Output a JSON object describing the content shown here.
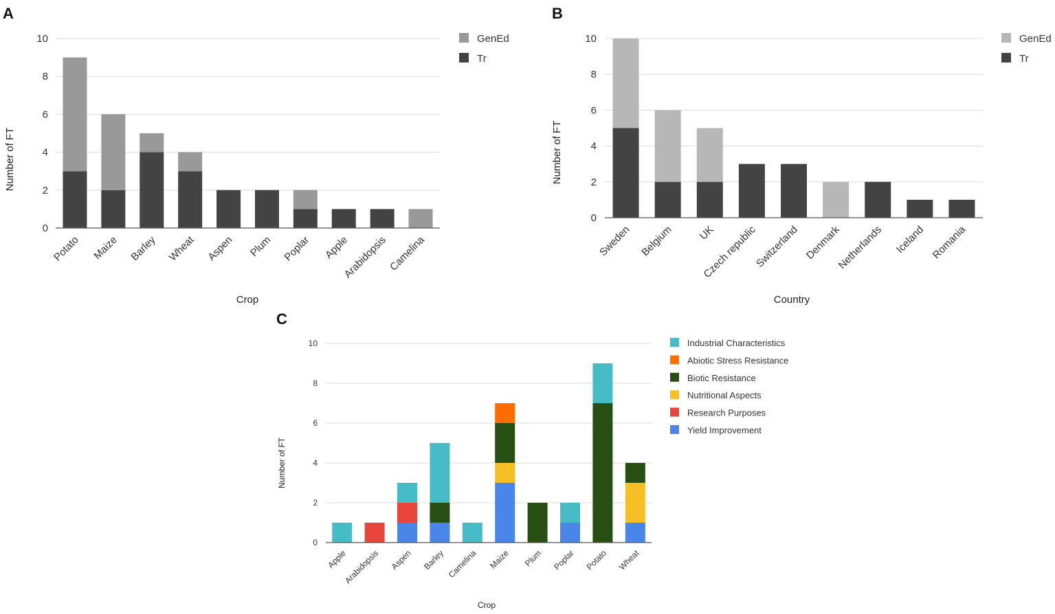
{
  "panels": [
    {
      "letter": "A",
      "chart_data": {
        "type": "bar",
        "stacked": true,
        "categories": [
          "Potato",
          "Maize",
          "Barley",
          "Wheat",
          "Aspen",
          "Plum",
          "Poplar",
          "Apple",
          "Arabidopsis",
          "Camelina"
        ],
        "series": [
          {
            "name": "Tr",
            "color": "#434343",
            "values": [
              3,
              2,
              4,
              3,
              2,
              2,
              1,
              1,
              1,
              0
            ]
          },
          {
            "name": "GenEd",
            "color": "#999999",
            "values": [
              6,
              4,
              1,
              1,
              0,
              0,
              1,
              0,
              0,
              1
            ]
          }
        ],
        "legend": [
          "GenEd",
          "Tr"
        ],
        "xlabel": "Crop",
        "ylabel": "Number of FT",
        "ylim": [
          0,
          10
        ],
        "yticks": [
          0,
          2,
          4,
          6,
          8,
          10
        ]
      }
    },
    {
      "letter": "B",
      "chart_data": {
        "type": "bar",
        "stacked": true,
        "categories": [
          "Sweden",
          "Belgium",
          "UK",
          "Czech republic",
          "Switzerland",
          "Denmark",
          "Netherlands",
          "Iceland",
          "Romania"
        ],
        "series": [
          {
            "name": "Tr",
            "color": "#434343",
            "values": [
              5,
              2,
              2,
              3,
              3,
              0,
              2,
              1,
              1
            ]
          },
          {
            "name": "GenEd",
            "color": "#b7b7b7",
            "values": [
              5,
              4,
              3,
              0,
              0,
              2,
              0,
              0,
              0
            ]
          }
        ],
        "legend": [
          "GenEd",
          "Tr"
        ],
        "xlabel": "Country",
        "ylabel": "Number of FT",
        "ylim": [
          0,
          10
        ],
        "yticks": [
          0,
          2,
          4,
          6,
          8,
          10
        ]
      }
    },
    {
      "letter": "C",
      "chart_data": {
        "type": "bar",
        "stacked": true,
        "categories": [
          "Apple",
          "Arabidopsis",
          "Aspen",
          "Barley",
          "Camelina",
          "Maize",
          "Plum",
          "Poplar",
          "Potato",
          "Wheat"
        ],
        "series": [
          {
            "name": "Yield Improvement",
            "color": "#4a86e8",
            "values": [
              0,
              0,
              1,
              1,
              0,
              3,
              0,
              1,
              0,
              1
            ]
          },
          {
            "name": "Research Purposes",
            "color": "#e8453c",
            "values": [
              0,
              1,
              1,
              0,
              0,
              0,
              0,
              0,
              0,
              0
            ]
          },
          {
            "name": "Nutritional Aspects",
            "color": "#f6bf26",
            "values": [
              0,
              0,
              0,
              0,
              0,
              1,
              0,
              0,
              0,
              2
            ]
          },
          {
            "name": "Biotic Resistance",
            "color": "#274e13",
            "values": [
              0,
              0,
              0,
              1,
              0,
              2,
              2,
              0,
              7,
              1
            ]
          },
          {
            "name": "Abiotic Stress Resistance",
            "color": "#ff6d01",
            "values": [
              0,
              0,
              0,
              0,
              0,
              1,
              0,
              0,
              0,
              0
            ]
          },
          {
            "name": "Industrial Characteristics",
            "color": "#46bdc6",
            "values": [
              1,
              0,
              1,
              3,
              1,
              0,
              0,
              1,
              2,
              0
            ]
          }
        ],
        "legend": [
          "Industrial Characteristics",
          "Abiotic Stress Resistance",
          "Biotic Resistance",
          "Nutritional Aspects",
          "Research Purposes",
          "Yield Improvement"
        ],
        "xlabel": "Crop",
        "ylabel": "Number of FT",
        "ylim": [
          0,
          10
        ],
        "yticks": [
          0,
          2,
          4,
          6,
          8,
          10
        ]
      }
    }
  ]
}
